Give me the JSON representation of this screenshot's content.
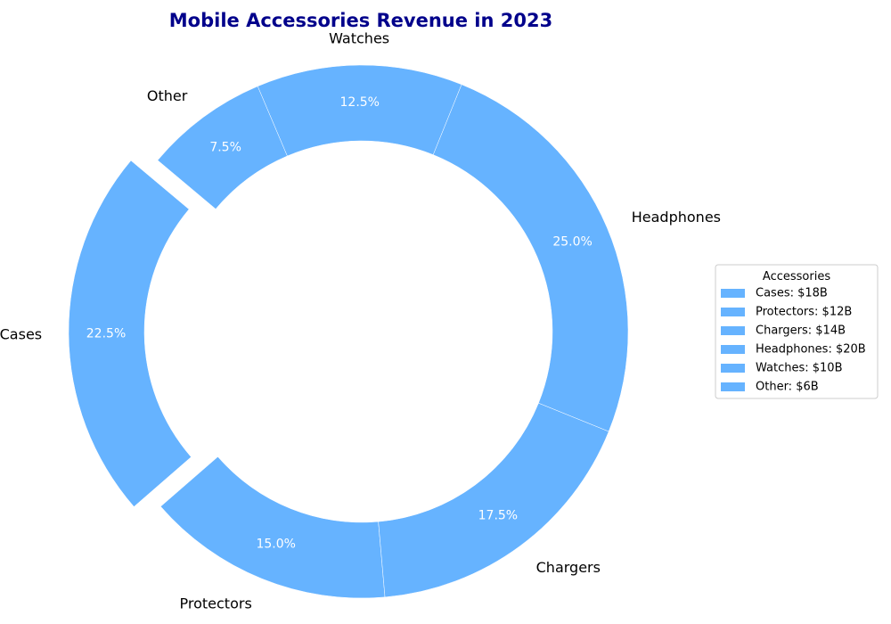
{
  "chart_data": {
    "type": "pie",
    "variant": "donut",
    "title": "Mobile Accessories Revenue in 2023",
    "title_color": "#00008B",
    "slice_color": "#66B3FF",
    "slice_edge_color": "#ffffff",
    "percent_label_color": "#ffffff",
    "labels": [
      "Cases",
      "Protectors",
      "Chargers",
      "Headphones",
      "Watches",
      "Other"
    ],
    "values": [
      18,
      12,
      14,
      20,
      10,
      6
    ],
    "units": "$B",
    "percent_labels": [
      "22.5%",
      "15.0%",
      "17.5%",
      "25.0%",
      "12.5%",
      "7.5%"
    ],
    "exploded": [
      "Cases"
    ],
    "start_angle_deg": 140,
    "direction": "counterclockwise",
    "legend": {
      "title": "Accessories",
      "position": "right",
      "entries": [
        "Cases: $18B",
        "Protectors: $12B",
        "Chargers: $14B",
        "Headphones: $20B",
        "Watches: $10B",
        "Other: $6B"
      ]
    }
  }
}
